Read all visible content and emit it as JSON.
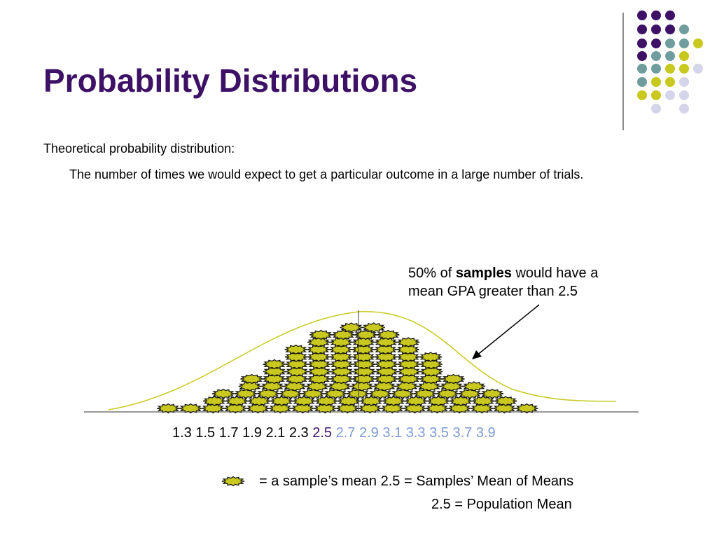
{
  "title": "Probability Distributions",
  "body": {
    "heading": "Theoretical probability distribution:",
    "definition": "The number of times we would expect to get a particular outcome in a large number of trials."
  },
  "annotation": {
    "before": "50% of",
    "bold": "samples",
    "after": "would have a mean GPA greater than 2.5"
  },
  "axis_labels": {
    "before": [
      "1.3",
      "1.5",
      "1.7",
      "1.9",
      "2.1",
      "2.3"
    ],
    "mean": "2.5",
    "after": [
      "2.7",
      "2.9",
      "3.1",
      "3.3",
      "3.5",
      "3.7",
      "3.9"
    ]
  },
  "legend": {
    "line1": "= a sample’s mean 2.5 = Samples’ Mean of Means",
    "line2": "2.5 = Population Mean"
  }
}
